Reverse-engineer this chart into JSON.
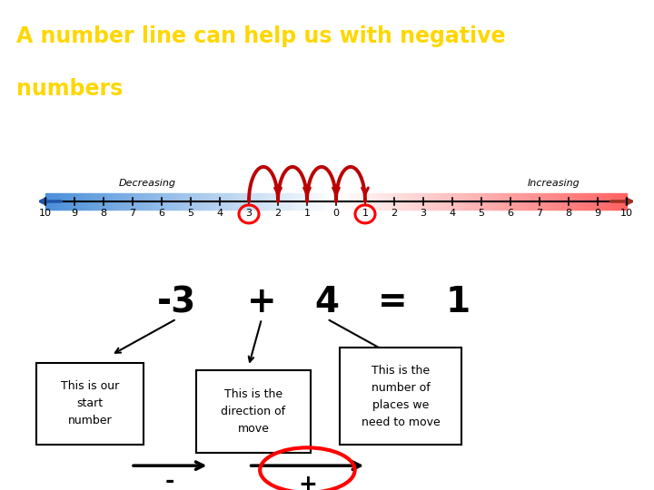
{
  "title_line1": "A number line can help us with negative",
  "title_line2": "numbers",
  "title_color": "#FFD700",
  "title_bg": "#000000",
  "bg_color": "#FFFFFF",
  "number_line_min": -10,
  "number_line_max": 10,
  "box1_text": "This is our\nstart\nnumber",
  "box2_text": "This is the\ndirection of\nmove",
  "box3_text": "This is the\nnumber of\nplaces we\nneed to move",
  "decreasing_label": "Decreasing",
  "increasing_label": "Increasing",
  "circle_numbers": [
    -3,
    1
  ],
  "arch_from": -3,
  "arch_to": 1,
  "arch_color": "#BB0000",
  "eq_parts": [
    [
      "-3",
      0.27
    ],
    [
      "+",
      0.4
    ],
    [
      "4",
      0.5
    ],
    [
      "=",
      0.6
    ],
    [
      "1",
      0.7
    ]
  ]
}
